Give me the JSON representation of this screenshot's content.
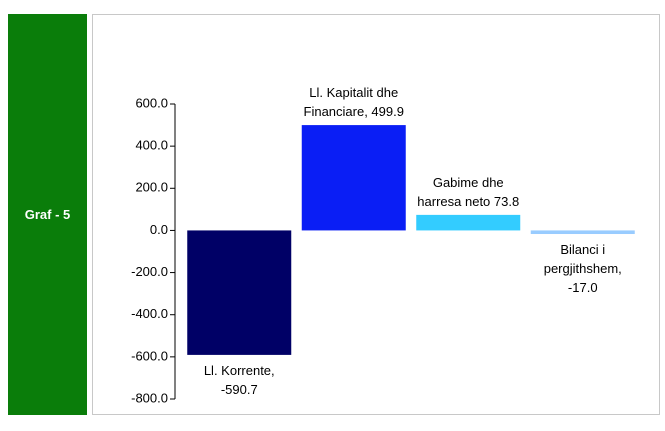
{
  "side_label": "Graf - 5",
  "chart_data": {
    "type": "bar",
    "values": [
      -590.7,
      499.9,
      73.8,
      -17.0
    ],
    "value_labels": [
      "Ll. Korrente, -590.7",
      "Ll. Kapitalit dhe Financiare, 499.9",
      "Gabime dhe harresa neto 73.8",
      "Bilanci i pergjithshem, -17.0"
    ],
    "colors": [
      "#000066",
      "#0a1ef5",
      "#33ccff",
      "#99ccff"
    ],
    "ylim": [
      -800,
      600
    ],
    "yticks": [
      {
        "value": -800,
        "label": "-800.0"
      },
      {
        "value": -600,
        "label": "-600.0"
      },
      {
        "value": -400,
        "label": "-400.0"
      },
      {
        "value": -200,
        "label": "-200.0"
      },
      {
        "value": 0,
        "label": "0.0"
      },
      {
        "value": 200,
        "label": "200.0"
      },
      {
        "value": 400,
        "label": "400.0"
      },
      {
        "value": 600,
        "label": "600.0"
      }
    ]
  }
}
